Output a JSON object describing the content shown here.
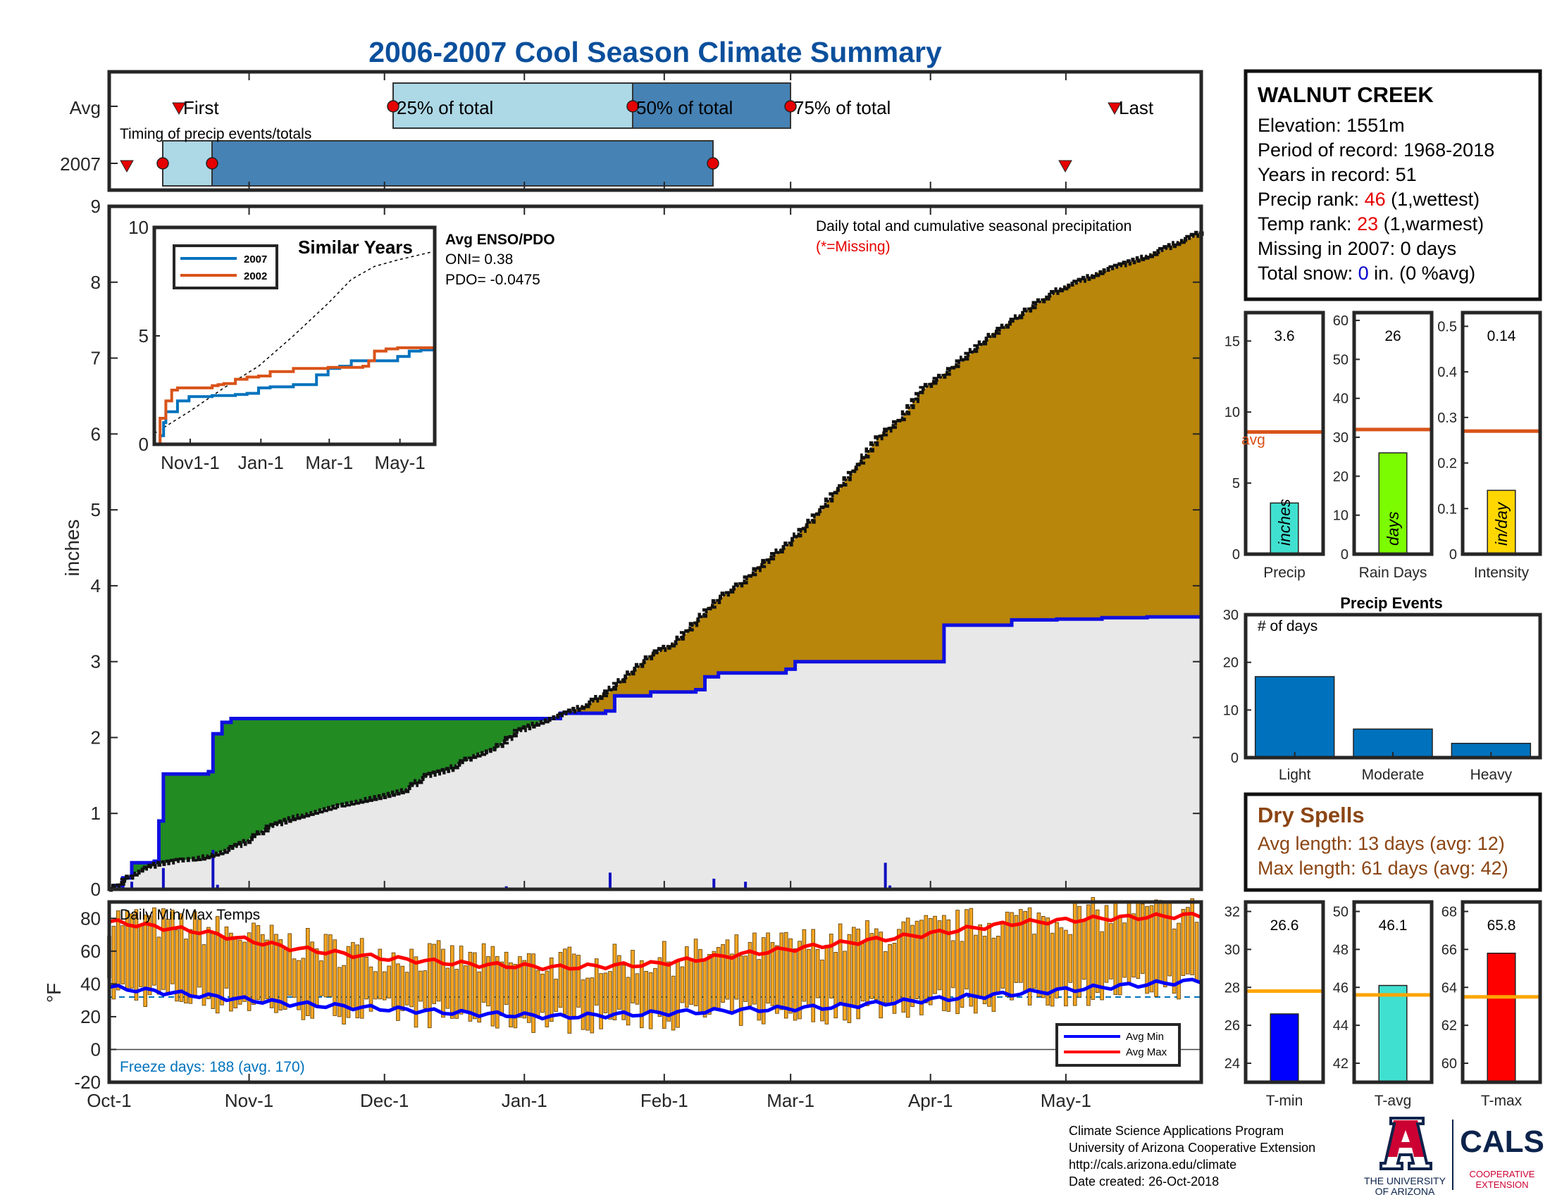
{
  "title": "2006-2007 Cool Season Climate Summary",
  "station": {
    "name": "WALNUT CREEK",
    "elevation_label": "Elevation: 1551m",
    "period_label": "Period of record: 1968-2018",
    "years_label": "Years in record: 51",
    "precip_rank_prefix": "Precip rank: ",
    "precip_rank_value": "46",
    "precip_rank_suffix": " (1,wettest)",
    "temp_rank_prefix": "Temp rank: ",
    "temp_rank_value": "23",
    "temp_rank_suffix": " (1,warmest)",
    "missing_label": "Missing in 2007: 0 days",
    "snow_prefix": "Total snow: ",
    "snow_value": "0",
    "snow_suffix": " in. (0 %avg)"
  },
  "colors": {
    "title": "#0b4f9c",
    "avg_line": "#1010e0",
    "cum_above": "#b8860b",
    "cum_below": "#228b22",
    "avg_fill": "#e8e8e8",
    "marker": "#e60000",
    "timing_light": "#add8e6",
    "timing_dark": "#4682b4",
    "s2007": "#0072bd",
    "s2002": "#d95319",
    "tmin": "#0000ff",
    "tavg": "#40e0d0",
    "tmax": "#ff0000",
    "bar_temp": "#f5a623",
    "dry": "#8b4513",
    "rank_red": "#e60000",
    "snow_blue": "#0000cc"
  },
  "timing": {
    "row_labels": [
      "Avg",
      "2007"
    ],
    "subtitle": "Timing of precip events/totals",
    "avg_markers": [
      "First",
      "25% of total",
      "50% of total",
      "75% of total",
      "Last"
    ]
  },
  "month_labels": [
    "Oct-1",
    "Nov-1",
    "Dec-1",
    "Jan-1",
    "Feb-1",
    "Mar-1",
    "Apr-1",
    "May-1"
  ],
  "main": {
    "ylabel": "inches",
    "yticks": [
      "0",
      "1",
      "2",
      "3",
      "4",
      "5",
      "6",
      "7",
      "8",
      "9"
    ],
    "annotation": "Daily total and cumulative seasonal precipitation",
    "missing_note": "(*=Missing)"
  },
  "inset": {
    "title": "Similar Years",
    "yticks": [
      "0",
      "5",
      "10"
    ],
    "xticks": [
      "Nov1-1",
      "Jan-1",
      "Mar-1",
      "May-1"
    ],
    "legend": [
      "2007",
      "2002"
    ],
    "enso_title": "Avg ENSO/PDO",
    "oni": "ONI= 0.38",
    "pdo": "PDO= -0.0475"
  },
  "temps": {
    "title": "Daily Min/Max Temps",
    "ylabel": "°F",
    "yticks": [
      "80",
      "60",
      "40",
      "20",
      "0",
      "-20"
    ],
    "freeze_label": "Freeze days: 188 (avg. 170)",
    "legend": [
      "Avg Min",
      "Avg Max"
    ]
  },
  "mini_precip": {
    "labels": [
      "Precip",
      "Rain Days",
      "Intensity"
    ],
    "values": [
      "3.6",
      "26",
      "0.14"
    ],
    "units": [
      "inches",
      "days",
      "in/day"
    ],
    "avg_label": "avg",
    "ticks": [
      [
        "0",
        "5",
        "10",
        "15"
      ],
      [
        "0",
        "10",
        "20",
        "30",
        "40",
        "50",
        "60"
      ],
      [
        "0",
        "0.1",
        "0.2",
        "0.3",
        "0.4",
        "0.5"
      ]
    ]
  },
  "events": {
    "title": "Precip Events",
    "ylabel": "# of days",
    "categories": [
      "Light",
      "Moderate",
      "Heavy"
    ],
    "yticks": [
      "0",
      "10",
      "20",
      "30"
    ]
  },
  "dry_spells": {
    "title": "Dry Spells",
    "avg_length": "Avg length: 13 days (avg: 12)",
    "max_length": "Max length: 61 days (avg: 42)"
  },
  "mini_temp": {
    "labels": [
      "T-min",
      "T-avg",
      "T-max"
    ],
    "values": [
      "26.6",
      "46.1",
      "65.8"
    ],
    "ticks": [
      [
        "24",
        "26",
        "28",
        "30",
        "32"
      ],
      [
        "42",
        "44",
        "46",
        "48",
        "50"
      ],
      [
        "60",
        "62",
        "64",
        "66",
        "68"
      ]
    ]
  },
  "footer": [
    "Climate Science Applications Program",
    "University of Arizona Cooperative Extension",
    "http://cals.arizona.edu/climate",
    " Date created: 26-Oct-2018"
  ],
  "logos": {
    "ua_line1": "THE UNIVERSITY",
    "ua_line2": "OF ARIZONA",
    "cals": "CALS",
    "cals_line1": "COOPERATIVE",
    "cals_line2": "EXTENSION"
  },
  "chart_data": [
    {
      "type": "area",
      "name": "cumulative-precip",
      "title": "Daily total and cumulative seasonal precipitation",
      "ylabel": "inches",
      "x_units": "days since Oct-1 (season day)",
      "xlim": [
        0,
        242
      ],
      "ylim": [
        0,
        9
      ],
      "series": [
        {
          "name": "2007 cumulative",
          "x": [
            0,
            5,
            10,
            15,
            20,
            25,
            30,
            35,
            40,
            50,
            60,
            65,
            70,
            75,
            80,
            85,
            90,
            95,
            100,
            105,
            110,
            115,
            120,
            125,
            130,
            135,
            140,
            145,
            150,
            155,
            160,
            165,
            170,
            175,
            180,
            185,
            190,
            195,
            200,
            205,
            210,
            220,
            230,
            242
          ],
          "y": [
            0,
            0.2,
            0.33,
            0.38,
            0.41,
            0.5,
            0.63,
            0.82,
            0.93,
            1.1,
            1.22,
            1.3,
            1.5,
            1.58,
            1.75,
            1.85,
            2.08,
            2.2,
            2.3,
            2.42,
            2.6,
            2.85,
            3.1,
            3.25,
            3.55,
            3.85,
            4.05,
            4.32,
            4.55,
            4.85,
            5.2,
            5.55,
            5.95,
            6.2,
            6.6,
            6.8,
            7.05,
            7.3,
            7.5,
            7.72,
            7.9,
            8.15,
            8.35,
            8.67
          ]
        },
        {
          "name": "Avg cumulative",
          "x": [
            0,
            1,
            3,
            5,
            10,
            11,
            12,
            15,
            22,
            23,
            25,
            27,
            60,
            62,
            78,
            100,
            110,
            112,
            120,
            130,
            132,
            135,
            150,
            152,
            160,
            170,
            172,
            175,
            185,
            200,
            210,
            220,
            230,
            242
          ],
          "y": [
            0,
            0.05,
            0.15,
            0.35,
            0.37,
            0.9,
            1.52,
            1.52,
            1.55,
            2.05,
            2.2,
            2.25,
            2.25,
            2.25,
            2.25,
            2.32,
            2.35,
            2.55,
            2.6,
            2.63,
            2.8,
            2.85,
            2.9,
            3.0,
            3.0,
            3.0,
            3.0,
            3.0,
            3.48,
            3.55,
            3.56,
            3.58,
            3.59,
            3.6
          ]
        }
      ],
      "daily_totals": {
        "x": [
          3,
          4,
          5,
          12,
          23,
          24,
          88,
          111,
          134,
          141,
          172,
          173
        ],
        "y": [
          0.03,
          0.02,
          0.1,
          0.28,
          0.52,
          0.06,
          0.04,
          0.22,
          0.14,
          0.1,
          0.35,
          0.05
        ]
      }
    },
    {
      "type": "line",
      "name": "similar-years",
      "title": "Similar Years",
      "xticks": [
        "Nov1-1",
        "Jan-1",
        "Mar-1",
        "May-1"
      ],
      "ylim": [
        0,
        10
      ],
      "series": [
        {
          "name": "2007",
          "x": [
            0,
            5,
            8,
            10,
            15,
            20,
            30,
            50,
            55,
            60,
            70,
            80,
            90,
            100,
            120,
            140,
            150,
            160,
            170,
            210,
            220,
            230,
            242
          ],
          "y": [
            0,
            0.4,
            1.0,
            1.5,
            1.5,
            2.0,
            2.2,
            2.25,
            2.25,
            2.25,
            2.3,
            2.35,
            2.6,
            2.65,
            2.75,
            3.2,
            3.5,
            3.6,
            3.85,
            4.05,
            4.3,
            4.35,
            4.4
          ]
        },
        {
          "name": "2002",
          "x": [
            0,
            5,
            10,
            15,
            20,
            50,
            55,
            60,
            70,
            80,
            90,
            100,
            120,
            150,
            180,
            185,
            190,
            200,
            210,
            242
          ],
          "y": [
            0,
            1.2,
            2.0,
            2.5,
            2.6,
            2.7,
            2.75,
            2.8,
            3.0,
            3.1,
            3.15,
            3.35,
            3.5,
            3.55,
            3.6,
            3.85,
            4.3,
            4.4,
            4.45,
            4.5
          ]
        },
        {
          "name": "Avg ENSO/PDO",
          "x": [
            0,
            30,
            60,
            90,
            120,
            150,
            170,
            190,
            210,
            242
          ],
          "y": [
            0.5,
            1.5,
            2.6,
            3.6,
            5.0,
            6.5,
            7.6,
            8.2,
            8.5,
            8.9
          ]
        }
      ]
    },
    {
      "type": "bar",
      "name": "daily-temps",
      "title": "Daily Min/Max Temps",
      "ylabel": "°F",
      "x_units": "days since Oct-1 (season day)",
      "ylim": [
        -20,
        90
      ],
      "series": [
        {
          "name": "Avg Max",
          "x": [
            0,
            20,
            40,
            60,
            80,
            100,
            120,
            140,
            160,
            180,
            200,
            220,
            242
          ],
          "y": [
            78,
            72,
            62,
            56,
            52,
            50,
            52,
            58,
            64,
            70,
            77,
            80,
            82
          ]
        },
        {
          "name": "Avg Min",
          "x": [
            0,
            20,
            40,
            60,
            80,
            100,
            120,
            140,
            160,
            180,
            200,
            220,
            242
          ],
          "y": [
            38,
            33,
            28,
            25,
            22,
            20,
            22,
            24,
            26,
            30,
            34,
            38,
            42
          ]
        }
      ],
      "freeze_line": 32
    },
    {
      "type": "bar",
      "name": "season-totals",
      "categories": [
        "Precip",
        "Rain Days",
        "Intensity"
      ],
      "values": [
        3.6,
        26,
        0.14
      ],
      "averages": [
        8.6,
        32,
        0.27
      ],
      "ylims": [
        [
          0,
          17
        ],
        [
          0,
          62
        ],
        [
          0,
          0.53
        ]
      ]
    },
    {
      "type": "bar",
      "name": "precip-events",
      "title": "Precip Events",
      "ylabel": "# of days",
      "categories": [
        "Light",
        "Moderate",
        "Heavy"
      ],
      "values": [
        17,
        6,
        3
      ],
      "ylim": [
        0,
        30
      ]
    },
    {
      "type": "bar",
      "name": "season-temps",
      "categories": [
        "T-min",
        "T-avg",
        "T-max"
      ],
      "values": [
        26.6,
        46.1,
        65.8
      ],
      "averages": [
        27.8,
        45.6,
        63.5
      ],
      "ylims": [
        [
          23,
          32.5
        ],
        [
          41,
          50.5
        ],
        [
          59,
          68.5
        ]
      ]
    }
  ]
}
